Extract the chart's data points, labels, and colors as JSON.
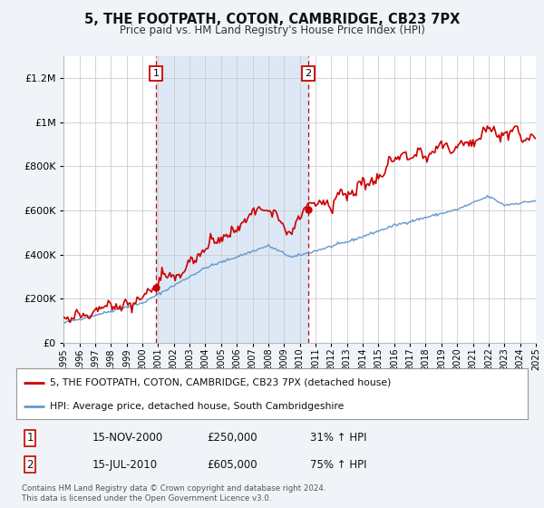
{
  "title": "5, THE FOOTPATH, COTON, CAMBRIDGE, CB23 7PX",
  "subtitle": "Price paid vs. HM Land Registry's House Price Index (HPI)",
  "background_color": "#f0f4f8",
  "plot_bg_color": "#ffffff",
  "shaded_region_color": "#dce8f5",
  "red_color": "#cc0000",
  "blue_color": "#6699cc",
  "sale1_year": 2000.87,
  "sale1_price": 250000,
  "sale1_label": "1",
  "sale1_date": "15-NOV-2000",
  "sale1_hpi_pct": "31%",
  "sale2_year": 2010.54,
  "sale2_price": 605000,
  "sale2_label": "2",
  "sale2_date": "15-JUL-2010",
  "sale2_hpi_pct": "75%",
  "xmin": 1995,
  "xmax": 2025,
  "ymin": 0,
  "ymax": 1300000,
  "yticks": [
    0,
    200000,
    400000,
    600000,
    800000,
    1000000,
    1200000
  ],
  "ytick_labels": [
    "£0",
    "£200K",
    "£400K",
    "£600K",
    "£800K",
    "£1M",
    "£1.2M"
  ],
  "xticks": [
    1995,
    1996,
    1997,
    1998,
    1999,
    2000,
    2001,
    2002,
    2003,
    2004,
    2005,
    2006,
    2007,
    2008,
    2009,
    2010,
    2011,
    2012,
    2013,
    2014,
    2015,
    2016,
    2017,
    2018,
    2019,
    2020,
    2021,
    2022,
    2023,
    2024,
    2025
  ],
  "legend_line1": "5, THE FOOTPATH, COTON, CAMBRIDGE, CB23 7PX (detached house)",
  "legend_line2": "HPI: Average price, detached house, South Cambridgeshire",
  "footer1": "Contains HM Land Registry data © Crown copyright and database right 2024.",
  "footer2": "This data is licensed under the Open Government Licence v3.0."
}
